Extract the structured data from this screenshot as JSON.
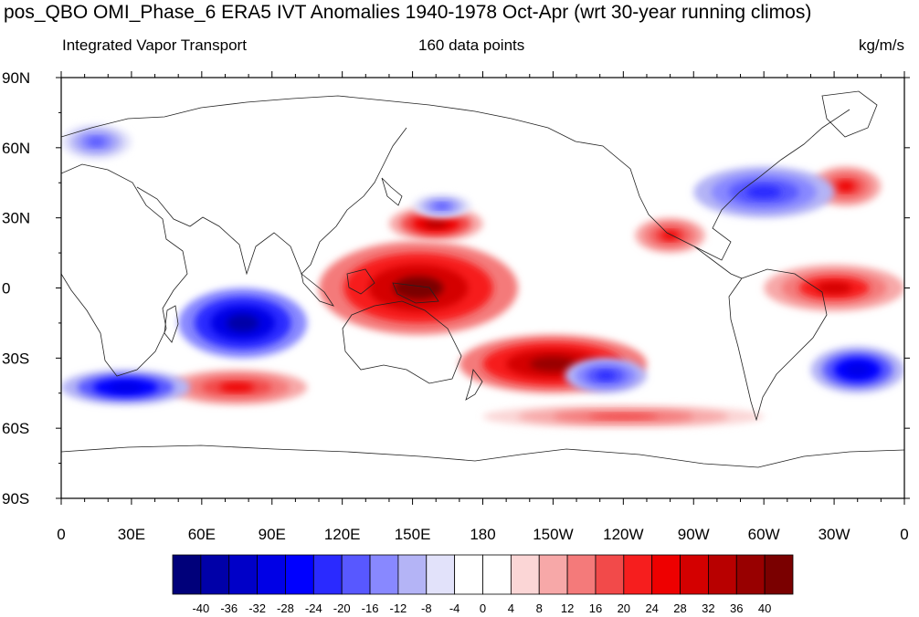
{
  "title": "pos_QBO OMI_Phase_6 ERA5 IVT Anomalies 1940-1978 Oct-Apr (wrt 30-year running climos)",
  "subtitle_left": "Integrated Vapor Transport",
  "subtitle_center": "160 data points",
  "subtitle_right": "kg/m/s",
  "map": {
    "projection": "cylindrical-equidistant",
    "central_longitude": 180,
    "lat_ticks": [
      "90N",
      "60N",
      "30N",
      "0",
      "30S",
      "60S",
      "90S"
    ],
    "lon_ticks": [
      "0",
      "30E",
      "60E",
      "90E",
      "120E",
      "150E",
      "180",
      "150W",
      "120W",
      "90W",
      "60W",
      "30W",
      "0"
    ],
    "lat_range": [
      -90,
      90
    ],
    "lon_range": [
      0,
      360
    ]
  },
  "colorbar": {
    "labels": [
      "-40",
      "-36",
      "-32",
      "-28",
      "-24",
      "-20",
      "-16",
      "-12",
      "-8",
      "-4",
      "0",
      "4",
      "8",
      "12",
      "16",
      "20",
      "24",
      "28",
      "32",
      "36",
      "40"
    ],
    "colors": [
      "#00007a",
      "#0000a8",
      "#0000c8",
      "#0000e6",
      "#0000ff",
      "#2a2aff",
      "#5858ff",
      "#8888ff",
      "#b4b4f6",
      "#e2e2fa",
      "#ffffff",
      "#ffffff",
      "#fbd6d6",
      "#f7a8a8",
      "#f47a7a",
      "#f24a4a",
      "#f61e1e",
      "#ee0000",
      "#d40000",
      "#b80000",
      "#980000",
      "#7a0000"
    ]
  },
  "chart_data": {
    "type": "heatmap",
    "variable": "IVT anomaly",
    "units": "kg/m/s",
    "anomaly_features": [
      {
        "sign": "positive",
        "lon_range": [
          110,
          195
        ],
        "lat_range": [
          -20,
          20
        ],
        "peak": 40
      },
      {
        "sign": "positive",
        "lon_range": [
          170,
          250
        ],
        "lat_range": [
          -45,
          -20
        ],
        "peak": 36
      },
      {
        "sign": "positive",
        "lon_range": [
          140,
          180
        ],
        "lat_range": [
          20,
          35
        ],
        "peak": 32
      },
      {
        "sign": "positive",
        "lon_range": [
          300,
          360
        ],
        "lat_range": [
          -10,
          10
        ],
        "peak": 28
      },
      {
        "sign": "positive",
        "lon_range": [
          45,
          105
        ],
        "lat_range": [
          -50,
          -35
        ],
        "peak": 24
      },
      {
        "sign": "positive",
        "lon_range": [
          245,
          275
        ],
        "lat_range": [
          15,
          30
        ],
        "peak": 24
      },
      {
        "sign": "positive",
        "lon_range": [
          320,
          350
        ],
        "lat_range": [
          35,
          52
        ],
        "peak": 24
      },
      {
        "sign": "positive",
        "lon_range": [
          180,
          300
        ],
        "lat_range": [
          -60,
          -50
        ],
        "peak": 16
      },
      {
        "sign": "negative",
        "lon_range": [
          50,
          105
        ],
        "lat_range": [
          -30,
          0
        ],
        "peak": -40
      },
      {
        "sign": "negative",
        "lon_range": [
          0,
          55
        ],
        "lat_range": [
          -50,
          -35
        ],
        "peak": -32
      },
      {
        "sign": "negative",
        "lon_range": [
          320,
          360
        ],
        "lat_range": [
          -45,
          -25
        ],
        "peak": -32
      },
      {
        "sign": "negative",
        "lon_range": [
          215,
          250
        ],
        "lat_range": [
          -45,
          -30
        ],
        "peak": -24
      },
      {
        "sign": "negative",
        "lon_range": [
          270,
          330
        ],
        "lat_range": [
          30,
          52
        ],
        "peak": -24
      },
      {
        "sign": "negative",
        "lon_range": [
          0,
          30
        ],
        "lat_range": [
          55,
          70
        ],
        "peak": -20
      },
      {
        "sign": "negative",
        "lon_range": [
          150,
          175
        ],
        "lat_range": [
          30,
          40
        ],
        "peak": -20
      }
    ]
  }
}
